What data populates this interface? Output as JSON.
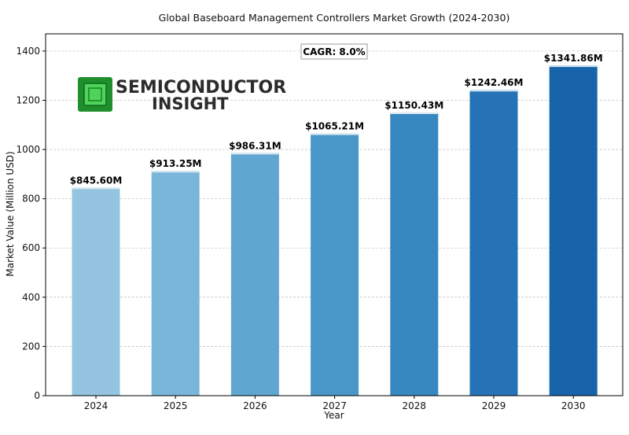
{
  "chart_data": {
    "type": "bar",
    "title": "Global Baseboard Management Controllers Market Growth (2024-2030)",
    "xlabel": "Year",
    "ylabel": "Market Value (Million USD)",
    "categories": [
      "2024",
      "2025",
      "2026",
      "2027",
      "2028",
      "2029",
      "2030"
    ],
    "values": [
      845.6,
      913.25,
      986.31,
      1065.21,
      1150.43,
      1242.46,
      1341.86
    ],
    "data_labels": [
      "$845.60M",
      "$913.25M",
      "$986.31M",
      "$1065.21M",
      "$1150.43M",
      "$1242.46M",
      "$1341.86M"
    ],
    "ylim": [
      0,
      1470
    ],
    "yticks": [
      0,
      200,
      400,
      600,
      800,
      1000,
      1200,
      1400
    ],
    "grid": "horizontal-dashed",
    "bar_colors": [
      "#94c4df",
      "#7ab6d9",
      "#5fa6d1",
      "#4997c9",
      "#3787c0",
      "#2573b6",
      "#1764ab"
    ],
    "annotation": "CAGR: 8.0%"
  },
  "logo": {
    "line1": "SEMICONDUCTOR",
    "line2": "INSIGHT",
    "chip_color": "#2fae3a"
  }
}
